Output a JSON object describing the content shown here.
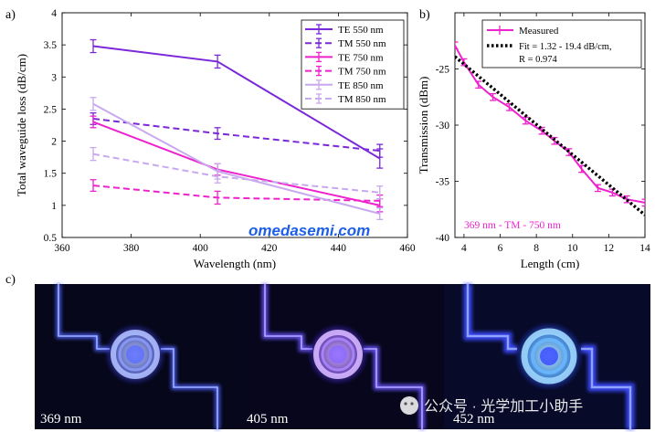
{
  "panel_labels": {
    "a": "a)",
    "b": "b)",
    "c": "c)"
  },
  "watermark": {
    "site": "omedasemi.com",
    "wechat": "公众号 · 光学加工小助手"
  },
  "chart_data": [
    {
      "type": "line",
      "panel": "a)",
      "xlabel": "Wavelength (nm)",
      "ylabel": "Total waveguide loss (dB/cm)",
      "xlim": [
        360,
        460
      ],
      "ylim": [
        0.5,
        4
      ],
      "xticks": [
        360,
        380,
        400,
        420,
        440,
        460
      ],
      "yticks": [
        0.5,
        1,
        1.5,
        2,
        2.5,
        3,
        3.5,
        4
      ],
      "x": [
        369,
        405,
        452
      ],
      "legend_position": "top-right",
      "series": [
        {
          "name": "TE 550 nm",
          "color": "#7a28d8",
          "dash": "solid",
          "values": [
            3.48,
            3.24,
            1.73
          ],
          "err": [
            0.1,
            0.1,
            0.15
          ]
        },
        {
          "name": "TM 550 nm",
          "color": "#7a28d8",
          "dash": "dashed",
          "values": [
            2.35,
            2.12,
            1.85
          ],
          "err": [
            0.09,
            0.09,
            0.1
          ]
        },
        {
          "name": "TE 750 nm",
          "color": "#ee22cc",
          "dash": "solid",
          "values": [
            2.3,
            1.56,
            1.0
          ],
          "err": [
            0.09,
            0.09,
            0.1
          ]
        },
        {
          "name": "TM 750 nm",
          "color": "#ee22cc",
          "dash": "dashed",
          "values": [
            1.31,
            1.12,
            1.07
          ],
          "err": [
            0.09,
            0.1,
            0.09
          ]
        },
        {
          "name": "TE 850 nm",
          "color": "#c8a8ee",
          "dash": "solid",
          "values": [
            2.58,
            1.53,
            0.87
          ],
          "err": [
            0.1,
            0.12,
            0.09
          ]
        },
        {
          "name": "TM 850 nm",
          "color": "#c8a8ee",
          "dash": "dashed",
          "values": [
            1.8,
            1.45,
            1.2
          ],
          "err": [
            0.1,
            0.1,
            0.1
          ]
        }
      ]
    },
    {
      "type": "line",
      "panel": "b)",
      "xlabel": "Length (cm)",
      "ylabel": "Transmission (dBm)",
      "xlim": [
        3.5,
        14
      ],
      "ylim": [
        -40,
        -20
      ],
      "xticks": [
        4,
        6,
        8,
        10,
        12,
        14
      ],
      "yticks": [
        -40,
        -35,
        -30,
        -25
      ],
      "annotation": "369 nm - TM - 750 nm",
      "legend_position": "top-right",
      "series": [
        {
          "name": "Measured",
          "color": "#ee22cc",
          "dash": "solid",
          "x": [
            3.5,
            4.0,
            4.8,
            5.6,
            6.5,
            7.4,
            8.3,
            9.0,
            9.8,
            10.5,
            11.4,
            12.2,
            13.0,
            14.0
          ],
          "values": [
            -22.9,
            -24.4,
            -26.4,
            -27.5,
            -28.4,
            -29.6,
            -30.5,
            -31.4,
            -32.4,
            -33.9,
            -35.6,
            -36.0,
            -36.6,
            -36.9
          ],
          "err": [
            0.3,
            0.3,
            0.3,
            0.3,
            0.3,
            0.3,
            0.3,
            0.3,
            0.3,
            0.3,
            0.3,
            0.3,
            0.3,
            0.3
          ]
        },
        {
          "name": "Fit = 1.32 - 19.4 dB/cm,",
          "name_line2": "R = 0.974",
          "color": "#000000",
          "dash": "dotted",
          "x": [
            3.5,
            14.0
          ],
          "values": [
            -23.9,
            -38.0
          ]
        }
      ]
    }
  ],
  "images": [
    {
      "label": "369 nm",
      "color": "#5a6cff"
    },
    {
      "label": "405 nm",
      "color": "#8a66ff"
    },
    {
      "label": "452 nm",
      "color": "#3a4cff"
    }
  ]
}
